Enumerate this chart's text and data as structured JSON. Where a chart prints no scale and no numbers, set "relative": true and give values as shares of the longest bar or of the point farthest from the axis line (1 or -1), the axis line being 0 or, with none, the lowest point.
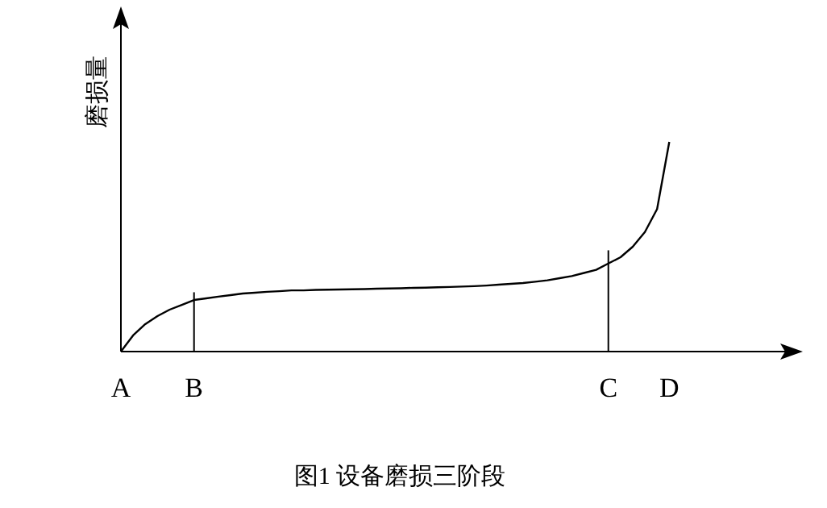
{
  "chart_data": {
    "type": "line",
    "relative": true,
    "ylabel": "磨损量",
    "annotations": [
      "图1 设备磨损三阶段"
    ],
    "categories": [
      "A",
      null,
      null,
      null,
      null,
      null,
      "B",
      null,
      null,
      null,
      null,
      null,
      null,
      null,
      null,
      null,
      null,
      null,
      null,
      null,
      null,
      null,
      null,
      null,
      null,
      null,
      null,
      null,
      null,
      null,
      null,
      null,
      null,
      null,
      null,
      null,
      null,
      null,
      null,
      null,
      "C",
      null,
      null,
      null,
      null,
      "D"
    ],
    "series": [
      {
        "color": "#000000",
        "values": [
          0,
          0.077,
          0.131,
          0.169,
          0.2,
          0.223,
          0.246,
          0.254,
          0.262,
          0.269,
          0.277,
          0.281,
          0.285,
          0.288,
          0.292,
          0.292,
          0.294,
          0.295,
          0.296,
          0.297,
          0.298,
          0.3,
          0.301,
          0.302,
          0.304,
          0.305,
          0.307,
          0.308,
          0.31,
          0.312,
          0.315,
          0.319,
          0.323,
          0.327,
          0.333,
          0.34,
          0.35,
          0.36,
          0.375,
          0.39,
          0.42,
          0.45,
          0.5,
          0.57,
          0.68,
          1
        ]
      }
    ],
    "ref_lines": [
      {
        "axis": "x",
        "value": "B",
        "color": "#000000"
      },
      {
        "axis": "x",
        "value": "C",
        "color": "#000000"
      }
    ],
    "marker": "none",
    "grid": false
  }
}
